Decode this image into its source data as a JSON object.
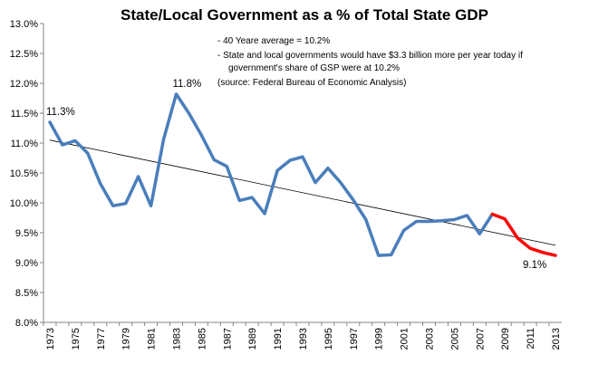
{
  "chart_data": {
    "type": "line",
    "title": "State/Local Government as a % of Total State GDP",
    "xlabel": "",
    "ylabel": "",
    "ylim": [
      8.0,
      13.0
    ],
    "y_ticks": [
      "8.0%",
      "8.5%",
      "9.0%",
      "9.5%",
      "10.0%",
      "10.5%",
      "11.0%",
      "11.5%",
      "12.0%",
      "12.5%",
      "13.0%"
    ],
    "x_ticks": [
      "1973",
      "1975",
      "1977",
      "1979",
      "1981",
      "1983",
      "1985",
      "1987",
      "1989",
      "1991",
      "1993",
      "1995",
      "1997",
      "1999",
      "2001",
      "2003",
      "2005",
      "2007",
      "2009",
      "2011",
      "2013"
    ],
    "x": [
      1973,
      1974,
      1975,
      1976,
      1977,
      1978,
      1979,
      1980,
      1981,
      1982,
      1983,
      1984,
      1985,
      1986,
      1987,
      1988,
      1989,
      1990,
      1991,
      1992,
      1993,
      1994,
      1995,
      1996,
      1997,
      1998,
      1999,
      2000,
      2001,
      2002,
      2003,
      2004,
      2005,
      2006,
      2007,
      2008,
      2009,
      2010,
      2011,
      2012,
      2013
    ],
    "series": [
      {
        "color": "#4a7ebb",
        "x": [
          1973,
          1974,
          1975,
          1976,
          1977,
          1978,
          1979,
          1980,
          1981,
          1982,
          1983,
          1984,
          1985,
          1986,
          1987,
          1988,
          1989,
          1990,
          1991,
          1992,
          1993,
          1994,
          1995,
          1996,
          1997,
          1998,
          1999,
          2000,
          2001,
          2002,
          2003,
          2004,
          2005,
          2006,
          2007,
          2008
        ],
        "values": [
          11.35,
          10.97,
          11.04,
          10.83,
          10.32,
          9.95,
          9.99,
          10.44,
          9.95,
          11.06,
          11.82,
          11.5,
          11.13,
          10.72,
          10.61,
          10.04,
          10.09,
          9.82,
          10.54,
          10.71,
          10.77,
          10.34,
          10.58,
          10.34,
          10.05,
          9.72,
          9.12,
          9.13,
          9.54,
          9.69,
          9.69,
          9.7,
          9.72,
          9.79,
          9.48,
          9.81
        ]
      },
      {
        "color": "#ff0000",
        "x": [
          2008,
          2009,
          2010,
          2011,
          2012,
          2013
        ],
        "values": [
          9.81,
          9.73,
          9.41,
          9.24,
          9.17,
          9.12
        ]
      }
    ],
    "trendline": {
      "color": "#000000",
      "x": [
        1973,
        2013
      ],
      "values": [
        11.05,
        9.29
      ]
    },
    "data_labels": [
      {
        "text": "11.3%",
        "x": 1973,
        "value": 11.35,
        "position": "above"
      },
      {
        "text": "11.8%",
        "x": 1983,
        "value": 11.82,
        "position": "above"
      },
      {
        "text": "9.1%",
        "x": 2013,
        "value": 9.12,
        "position": "below-left"
      }
    ],
    "annotations": [
      "- 40 Yeare average = 10.2%",
      "- State and local governments would have $3.3 billion more per year today if",
      "government's share of GSP were at 10.2%",
      "(source: Federal Bureau of Economic Analysis)"
    ],
    "grid": false,
    "legend": "none"
  }
}
